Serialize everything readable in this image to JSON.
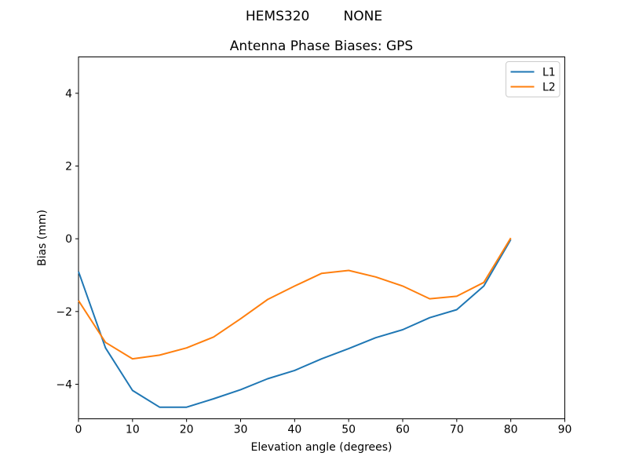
{
  "figure": {
    "suptitle": "HEMS320        NONE",
    "background": "#ffffff",
    "text_color": "#000000",
    "spine_color": "#000000"
  },
  "legend": {
    "position": "upper right",
    "border_color": "#cccccc",
    "background": "#ffffff",
    "entries": [
      {
        "label": "L1",
        "color": "#1f77b4"
      },
      {
        "label": "L2",
        "color": "#ff7f0e"
      }
    ]
  },
  "chart_data": {
    "type": "line",
    "title": "Antenna Phase Biases: GPS",
    "xlabel": "Elevation angle (degrees)",
    "ylabel": "Bias (mm)",
    "xlim": [
      0,
      90
    ],
    "ylim": [
      -4.95,
      5.0
    ],
    "xticks": [
      0,
      10,
      20,
      30,
      40,
      50,
      60,
      70,
      80,
      90
    ],
    "yticks": [
      -4,
      -2,
      0,
      2,
      4
    ],
    "grid": false,
    "legend_position": "upper right",
    "x": [
      0,
      5,
      10,
      15,
      20,
      25,
      30,
      35,
      40,
      45,
      50,
      55,
      60,
      65,
      70,
      75,
      80
    ],
    "series": [
      {
        "name": "L1",
        "color": "#1f77b4",
        "values": [
          -0.9,
          -3.0,
          -4.17,
          -4.63,
          -4.63,
          -4.4,
          -4.15,
          -3.85,
          -3.62,
          -3.3,
          -3.02,
          -2.72,
          -2.5,
          -2.17,
          -1.95,
          -1.3,
          -0.02
        ]
      },
      {
        "name": "L2",
        "color": "#ff7f0e",
        "values": [
          -1.7,
          -2.85,
          -3.3,
          -3.2,
          -3.0,
          -2.7,
          -2.2,
          -1.67,
          -1.3,
          -0.95,
          -0.87,
          -1.05,
          -1.3,
          -1.65,
          -1.58,
          -1.2,
          0.02
        ]
      }
    ]
  }
}
